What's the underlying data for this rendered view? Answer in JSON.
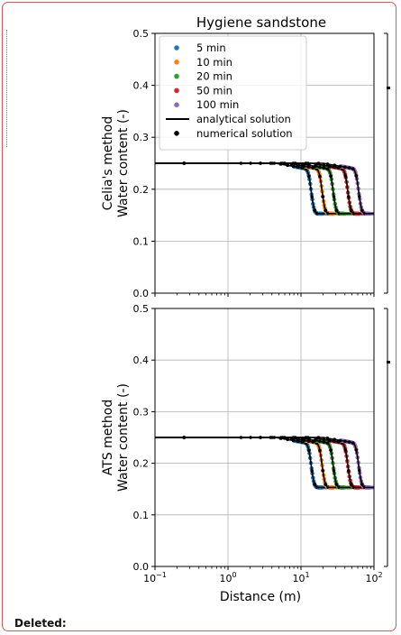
{
  "chart_data": {
    "type": "scatter",
    "title": "Hygiene sandstone",
    "xlabel": "Distance (m)",
    "xscale": "log",
    "xlim": [
      0.1,
      100
    ],
    "xticks": [
      {
        "value": 0.1,
        "base": "10",
        "exp": "−1"
      },
      {
        "value": 1,
        "base": "10",
        "exp": "0"
      },
      {
        "value": 10,
        "base": "10",
        "exp": "1"
      },
      {
        "value": 100,
        "base": "10",
        "exp": "2"
      }
    ],
    "yticks": [
      "0.0",
      "0.1",
      "0.2",
      "0.3",
      "0.4",
      "0.5"
    ],
    "ylim": [
      0.0,
      0.5
    ],
    "grid": true,
    "legend_position": "upper-left (top panel)",
    "colors": {
      "5 min": "#1f77b4",
      "10 min": "#ff7f0e",
      "20 min": "#2ca02c",
      "50 min": "#d62728",
      "100 min": "#9467bd",
      "analytical solution": "#000000",
      "numerical solution": "#000000"
    },
    "legend": [
      {
        "label": "5 min",
        "kind": "dot",
        "color": "#1f77b4"
      },
      {
        "label": "10 min",
        "kind": "dot",
        "color": "#ff7f0e"
      },
      {
        "label": "20 min",
        "kind": "dot",
        "color": "#2ca02c"
      },
      {
        "label": "50 min",
        "kind": "dot",
        "color": "#d62728"
      },
      {
        "label": "100 min",
        "kind": "dot",
        "color": "#9467bd"
      },
      {
        "label": "analytical solution",
        "kind": "line",
        "color": "#000000"
      },
      {
        "label": "numerical solution",
        "kind": "dot",
        "color": "#000000"
      }
    ],
    "panels": [
      {
        "ylabel_line1": "Celia's method",
        "ylabel_line2": "Water content (-)"
      },
      {
        "ylabel_line1": "ATS method",
        "ylabel_line2": "Water content (-)"
      }
    ],
    "series": [
      {
        "name": "5 min",
        "initial": 0.25,
        "final": 0.153,
        "front_start_x": 9,
        "front_x": 17
      },
      {
        "name": "10 min",
        "initial": 0.25,
        "final": 0.153,
        "front_start_x": 13,
        "front_x": 24
      },
      {
        "name": "20 min",
        "initial": 0.25,
        "final": 0.153,
        "front_start_x": 18,
        "front_x": 34
      },
      {
        "name": "50 min",
        "initial": 0.25,
        "final": 0.153,
        "front_start_x": 28,
        "front_x": 54
      },
      {
        "name": "100 min",
        "initial": 0.25,
        "final": 0.153,
        "front_start_x": 40,
        "front_x": 76
      }
    ]
  },
  "footer": {
    "deleted_label": "Deleted:"
  }
}
